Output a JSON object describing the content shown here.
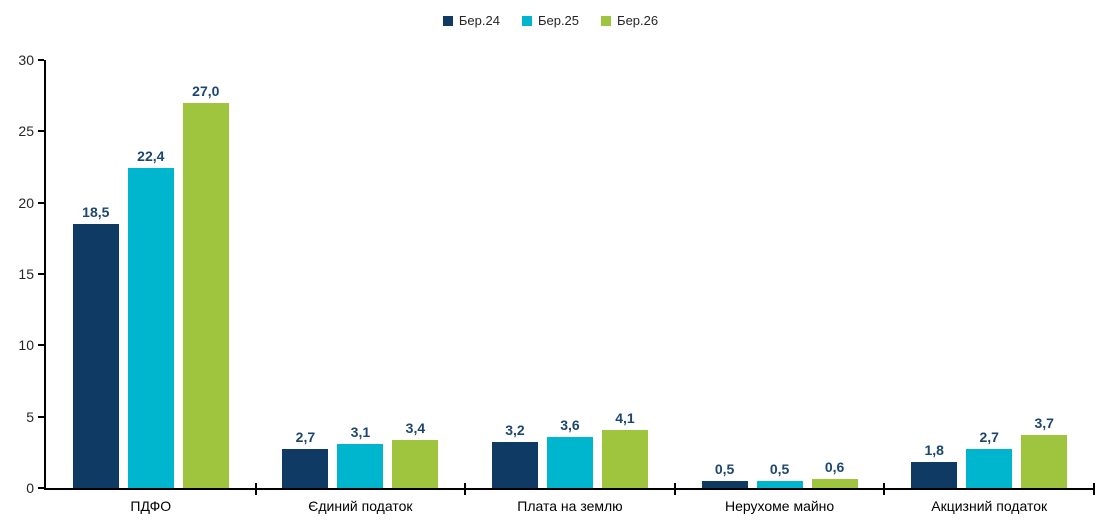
{
  "chart_data": {
    "type": "bar",
    "title": "",
    "xlabel": "",
    "ylabel": "",
    "categories": [
      "ПДФО",
      "Єдиний податок",
      "Плата на землю",
      "Нерухоме майно",
      "Акцизний податок"
    ],
    "series": [
      {
        "name": "Бер.24",
        "color": "#0E3A63",
        "values": [
          18.5,
          2.7,
          3.2,
          0.5,
          1.8
        ],
        "labels": [
          "18,5",
          "2,7",
          "3,2",
          "0,5",
          "1,8"
        ]
      },
      {
        "name": "Бер.25",
        "color": "#00B5CE",
        "values": [
          22.4,
          3.1,
          3.6,
          0.5,
          2.7
        ],
        "labels": [
          "22,4",
          "3,1",
          "3,6",
          "0,5",
          "2,7"
        ]
      },
      {
        "name": "Бер.26",
        "color": "#9FC43D",
        "values": [
          27.0,
          3.4,
          4.1,
          0.6,
          3.7
        ],
        "labels": [
          "27,0",
          "3,4",
          "4,1",
          "0,6",
          "3,7"
        ]
      }
    ],
    "ylim": [
      0,
      30
    ],
    "yticks": [
      0,
      5,
      10,
      15,
      20,
      25,
      30
    ],
    "grid": false,
    "legend_position": "top",
    "value_label_color": "#1C4670",
    "axis_color": "#000000",
    "background_color": "#ffffff"
  }
}
